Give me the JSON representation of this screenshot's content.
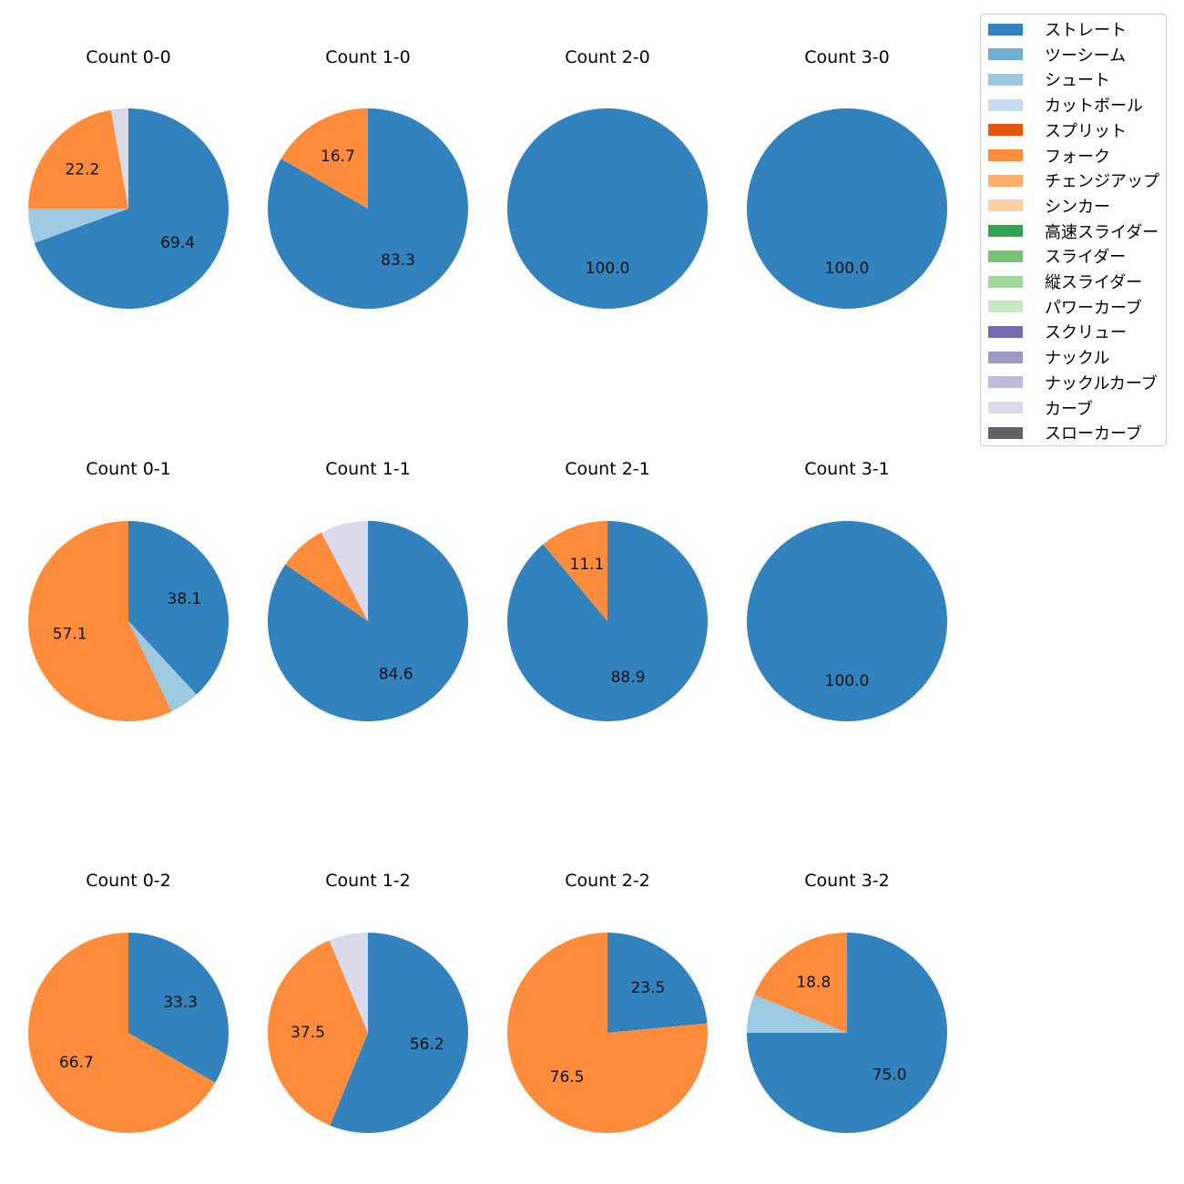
{
  "chart_data": {
    "type": "pie",
    "legend_placement": "top-right",
    "legend": [
      {
        "name": "ストレート",
        "color": "#3182bd"
      },
      {
        "name": "ツーシーム",
        "color": "#6baed6"
      },
      {
        "name": "シュート",
        "color": "#9ecae1"
      },
      {
        "name": "カットボール",
        "color": "#c6dbef"
      },
      {
        "name": "スプリット",
        "color": "#e6550d"
      },
      {
        "name": "フォーク",
        "color": "#fd8d3c"
      },
      {
        "name": "チェンジアップ",
        "color": "#fdae6b"
      },
      {
        "name": "シンカー",
        "color": "#fdd0a2"
      },
      {
        "name": "高速スライダー",
        "color": "#31a354"
      },
      {
        "name": "スライダー",
        "color": "#74c476"
      },
      {
        "name": "縦スライダー",
        "color": "#a1d99b"
      },
      {
        "name": "パワーカーブ",
        "color": "#c7e9c0"
      },
      {
        "name": "スクリュー",
        "color": "#756bb1"
      },
      {
        "name": "ナックル",
        "color": "#9e9ac8"
      },
      {
        "name": "ナックルカーブ",
        "color": "#bcbddc"
      },
      {
        "name": "カーブ",
        "color": "#dadaeb"
      },
      {
        "name": "スローカーブ",
        "color": "#636363"
      }
    ],
    "charts": [
      {
        "title": "Count 0-0",
        "slices": [
          {
            "pitch": "ストレート",
            "value": 69.4,
            "label": "69.4"
          },
          {
            "pitch": "シュート",
            "value": 5.6,
            "label": ""
          },
          {
            "pitch": "フォーク",
            "value": 22.2,
            "label": "22.2"
          },
          {
            "pitch": "カーブ",
            "value": 2.8,
            "label": ""
          }
        ]
      },
      {
        "title": "Count 1-0",
        "slices": [
          {
            "pitch": "ストレート",
            "value": 83.3,
            "label": "83.3"
          },
          {
            "pitch": "フォーク",
            "value": 16.7,
            "label": "16.7"
          }
        ]
      },
      {
        "title": "Count 2-0",
        "slices": [
          {
            "pitch": "ストレート",
            "value": 100.0,
            "label": "100.0"
          }
        ]
      },
      {
        "title": "Count 3-0",
        "slices": [
          {
            "pitch": "ストレート",
            "value": 100.0,
            "label": "100.0"
          }
        ]
      },
      {
        "title": "Count 0-1",
        "slices": [
          {
            "pitch": "ストレート",
            "value": 38.1,
            "label": "38.1"
          },
          {
            "pitch": "シュート",
            "value": 4.8,
            "label": ""
          },
          {
            "pitch": "フォーク",
            "value": 57.1,
            "label": "57.1"
          }
        ]
      },
      {
        "title": "Count 1-1",
        "slices": [
          {
            "pitch": "ストレート",
            "value": 84.6,
            "label": "84.6"
          },
          {
            "pitch": "フォーク",
            "value": 7.7,
            "label": ""
          },
          {
            "pitch": "カーブ",
            "value": 7.7,
            "label": ""
          }
        ]
      },
      {
        "title": "Count 2-1",
        "slices": [
          {
            "pitch": "ストレート",
            "value": 88.9,
            "label": "88.9"
          },
          {
            "pitch": "フォーク",
            "value": 11.1,
            "label": "11.1"
          }
        ]
      },
      {
        "title": "Count 3-1",
        "slices": [
          {
            "pitch": "ストレート",
            "value": 100.0,
            "label": "100.0"
          }
        ]
      },
      {
        "title": "Count 0-2",
        "slices": [
          {
            "pitch": "ストレート",
            "value": 33.3,
            "label": "33.3"
          },
          {
            "pitch": "フォーク",
            "value": 66.7,
            "label": "66.7"
          }
        ]
      },
      {
        "title": "Count 1-2",
        "slices": [
          {
            "pitch": "ストレート",
            "value": 56.2,
            "label": "56.2"
          },
          {
            "pitch": "フォーク",
            "value": 37.5,
            "label": "37.5"
          },
          {
            "pitch": "カーブ",
            "value": 6.3,
            "label": ""
          }
        ]
      },
      {
        "title": "Count 2-2",
        "slices": [
          {
            "pitch": "ストレート",
            "value": 23.5,
            "label": "23.5"
          },
          {
            "pitch": "フォーク",
            "value": 76.5,
            "label": "76.5"
          }
        ]
      },
      {
        "title": "Count 3-2",
        "slices": [
          {
            "pitch": "ストレート",
            "value": 75.0,
            "label": "75.0"
          },
          {
            "pitch": "シュート",
            "value": 6.2,
            "label": ""
          },
          {
            "pitch": "フォーク",
            "value": 18.8,
            "label": "18.8"
          }
        ]
      }
    ]
  }
}
